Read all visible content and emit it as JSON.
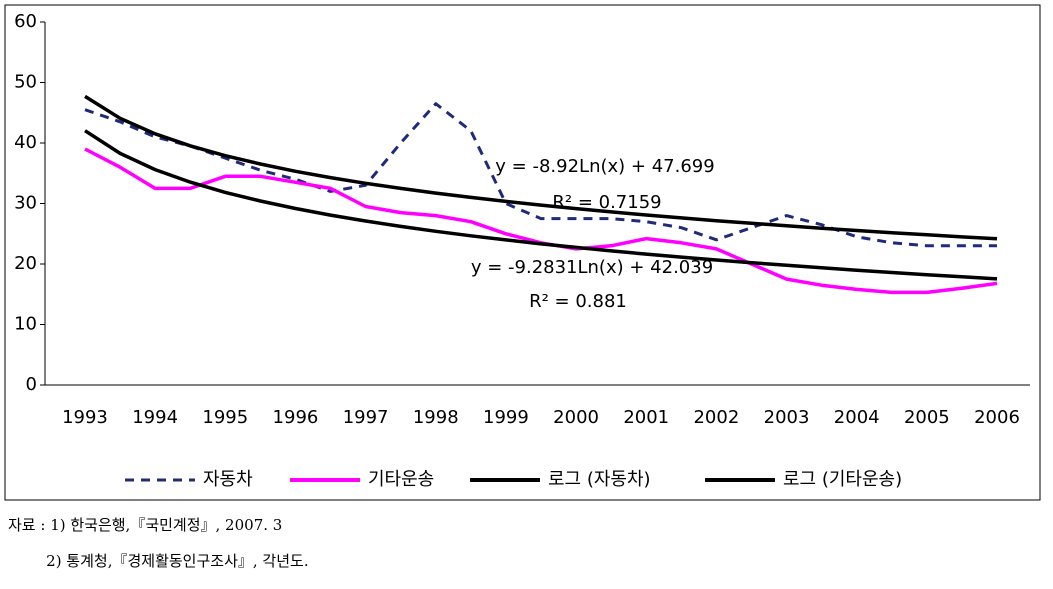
{
  "chart_data": {
    "type": "line",
    "x": [
      1993,
      1993.5,
      1994,
      1994.5,
      1995,
      1995.5,
      1996,
      1996.5,
      1997,
      1997.5,
      1998,
      1998.5,
      1999,
      1999.5,
      2000,
      2000.5,
      2001,
      2001.5,
      2002,
      2002.5,
      2003,
      2003.5,
      2004,
      2004.5,
      2005,
      2005.5,
      2006
    ],
    "xlim": [
      1992.43,
      2006.47
    ],
    "xticks": [
      1993,
      1994,
      1995,
      1996,
      1997,
      1998,
      1999,
      2000,
      2001,
      2002,
      2003,
      2004,
      2005,
      2006
    ],
    "ylim": [
      0,
      60
    ],
    "yticks": [
      0,
      10,
      20,
      30,
      40,
      50,
      60
    ],
    "series": [
      {
        "name": "자동차",
        "color": "#1f2a7a",
        "dashed": true,
        "values": [
          45.5,
          43.5,
          41,
          39.5,
          37.5,
          35.5,
          34,
          32,
          33,
          40,
          46.5,
          42,
          30,
          27.5,
          27.5,
          27.5,
          27,
          26,
          24,
          26,
          28,
          26.5,
          24.5,
          23.5,
          23,
          23,
          23
        ]
      },
      {
        "name": "기타운송",
        "color": "#ff00ff",
        "dashed": false,
        "values": [
          39,
          36,
          32.5,
          32.5,
          34.5,
          34.5,
          33.5,
          32.5,
          29.5,
          28.5,
          28,
          27,
          25,
          23.5,
          22.5,
          23,
          24.2,
          23.5,
          22.5,
          20,
          17.5,
          16.5,
          15.8,
          15.3,
          15.3,
          16,
          16.8
        ]
      },
      {
        "name": "로그 (자동차)",
        "color": "#000000",
        "dashed": false,
        "values": [
          47.7,
          44.08,
          41.52,
          39.53,
          37.9,
          36.53,
          35.33,
          34.28,
          33.34,
          32.49,
          31.72,
          31.0,
          30.34,
          29.73,
          29.15,
          28.61,
          28.1,
          27.62,
          27.16,
          26.73,
          26.31,
          25.91,
          25.53,
          25.17,
          24.82,
          24.48,
          24.16
        ]
      },
      {
        "name": "로그 (기타운송)",
        "color": "#000000",
        "dashed": false,
        "values": [
          42.04,
          38.28,
          35.61,
          33.53,
          31.84,
          30.41,
          29.17,
          28.08,
          27.1,
          26.21,
          25.41,
          24.66,
          23.98,
          23.33,
          22.74,
          22.17,
          21.64,
          21.14,
          20.66,
          20.21,
          19.78,
          19.37,
          18.97,
          18.59,
          18.23,
          17.88,
          17.54
        ]
      }
    ],
    "annotations": [
      "y = -8.92Ln(x) + 47.699",
      "R² = 0.7159",
      "y = -9.2831Ln(x) + 42.039",
      "R² = 0.881"
    ]
  },
  "notes": [
    "자료 : 1) 한국은행,『국민계정』, 2007. 3",
    "        2) 통계청,『경제활동인구조사』, 각년도."
  ]
}
